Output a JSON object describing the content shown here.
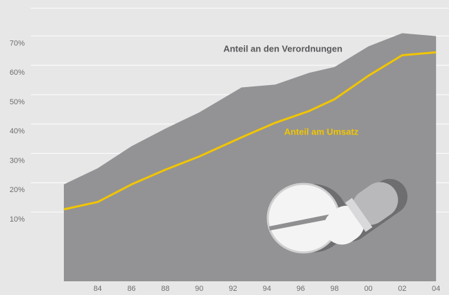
{
  "chart_data": {
    "type": "area-line",
    "x": [
      1982,
      1984,
      1986,
      1988,
      1990,
      1992.5,
      1994.5,
      1996.5,
      1998,
      2000,
      2002,
      2004
    ],
    "series": [
      {
        "name": "Anteil an den Verordnungen",
        "color": "#939395",
        "kind": "area",
        "values": [
          22,
          27.5,
          35,
          41,
          46.5,
          55,
          56,
          60,
          62,
          69,
          73.5,
          72.5
        ]
      },
      {
        "name": "Anteil am Umsatz",
        "color": "#f2c500",
        "kind": "line",
        "values": [
          13.5,
          16,
          22,
          27,
          31.5,
          38,
          43,
          47,
          51,
          59,
          66,
          67
        ]
      }
    ],
    "xlim": [
      1982,
      2004.4
    ],
    "xticks": [
      {
        "value": 1984,
        "label": "84"
      },
      {
        "value": 1986,
        "label": "86"
      },
      {
        "value": 1988,
        "label": "88"
      },
      {
        "value": 1990,
        "label": "90"
      },
      {
        "value": 1992,
        "label": "92"
      },
      {
        "value": 1994,
        "label": "94"
      },
      {
        "value": 1996,
        "label": "96"
      },
      {
        "value": 1998,
        "label": "98"
      },
      {
        "value": 2000,
        "label": "00"
      },
      {
        "value": 2002,
        "label": "02"
      },
      {
        "value": 2004,
        "label": "04"
      }
    ],
    "ylim": [
      -11,
      82
    ],
    "yticks": [
      {
        "value": 10,
        "label": "10%"
      },
      {
        "value": 20,
        "label": "20%"
      },
      {
        "value": 30,
        "label": "30%"
      },
      {
        "value": 40,
        "label": "40%"
      },
      {
        "value": 50,
        "label": "50%"
      },
      {
        "value": 60,
        "label": "60%"
      },
      {
        "value": 70,
        "label": "70%"
      }
    ],
    "grid": true
  }
}
